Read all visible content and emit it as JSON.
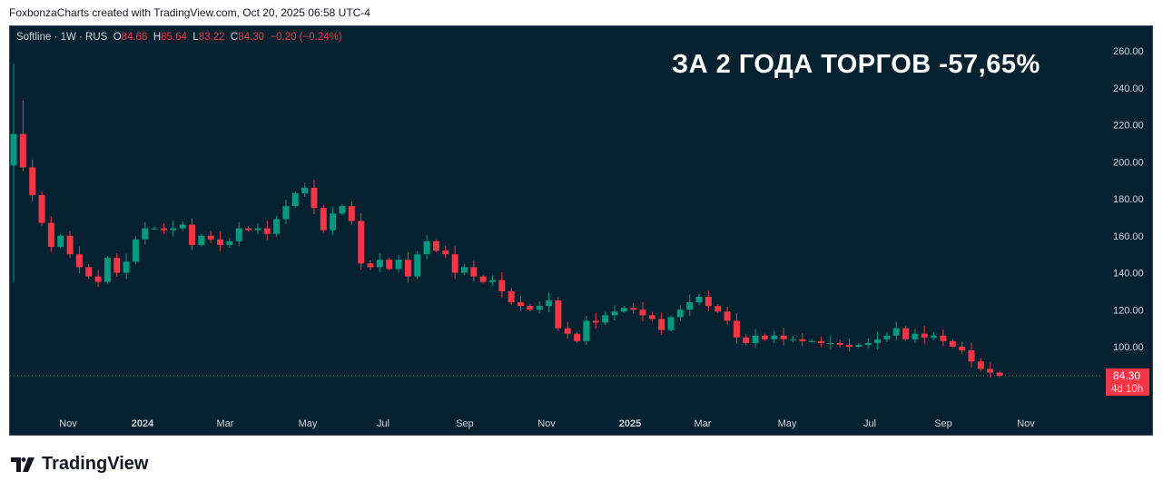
{
  "credit": "FoxbonzaCharts created with TradingView.com, Oct 20, 2025 06:58 UTC-4",
  "legend": {
    "symbol": "Softline · 1W · RUS",
    "o_label": "O",
    "o": "84.68",
    "h_label": "H",
    "h": "85.64",
    "l_label": "L",
    "l": "83.22",
    "c_label": "C",
    "c": "84.30",
    "change": "−0.20 (−0.24%)"
  },
  "headline": "ЗА 2 ГОДА ТОРГОВ -57,65%",
  "price_tag": {
    "price": "84.30",
    "countdown": "4d 10h"
  },
  "logo_text": "TradingView",
  "colors": {
    "up": "#089981",
    "down": "#f23645",
    "bg": "#062230"
  },
  "chart_data": {
    "type": "candlestick",
    "title": "Softline · 1W · RUS",
    "ylim": [
      78,
      268
    ],
    "y_ticks": [
      "100.00",
      "120.00",
      "140.00",
      "160.00",
      "180.00",
      "200.00",
      "220.00",
      "240.00",
      "260.00"
    ],
    "x_ticks": [
      "Nov",
      "2024",
      "Mar",
      "May",
      "Jul",
      "Sep",
      "Nov",
      "2025",
      "Mar",
      "May",
      "Jul",
      "Sep",
      "Nov"
    ],
    "first_open": 198,
    "closes": [
      215,
      197,
      182,
      167,
      154,
      160,
      150,
      143,
      138,
      135,
      148,
      140,
      146,
      158,
      164,
      164,
      163,
      164,
      166,
      155,
      160,
      158,
      155,
      157,
      164,
      163,
      164,
      161,
      169,
      176,
      183,
      186,
      175,
      163,
      172,
      176,
      168,
      145,
      143,
      147,
      142,
      147,
      138,
      150,
      157,
      152,
      150,
      140,
      143,
      138,
      135,
      136,
      130,
      124,
      122,
      120,
      122,
      125,
      110,
      107,
      103,
      114,
      113,
      117,
      119,
      121,
      120,
      117,
      115,
      109,
      116,
      120,
      124,
      127,
      122,
      119,
      114,
      105,
      102,
      106,
      104,
      106,
      104,
      104,
      103,
      103,
      102,
      102,
      101,
      100,
      101,
      102,
      104,
      106,
      110,
      104,
      107,
      105,
      106,
      103,
      100,
      98,
      92,
      88,
      86,
      84.3
    ],
    "last_price": 84.3
  }
}
